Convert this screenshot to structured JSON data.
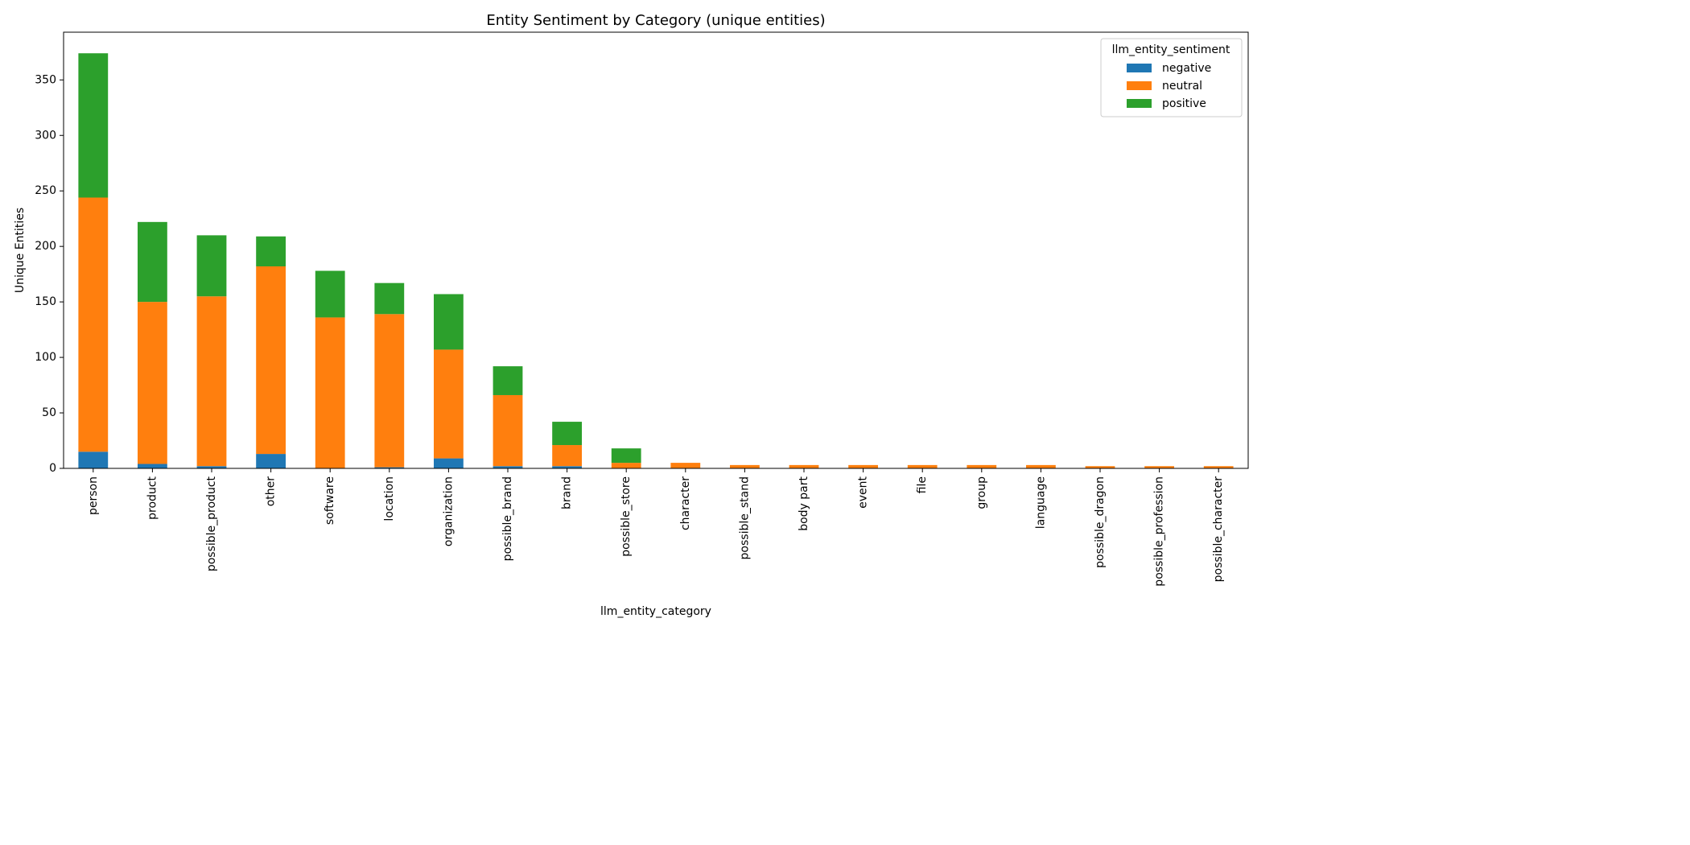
{
  "chart_data": {
    "type": "bar",
    "stacked": true,
    "title": "Entity Sentiment by Category (unique entities)",
    "xlabel": "llm_entity_category",
    "ylabel": "Unique Entities",
    "ylim": [
      0,
      393
    ],
    "yticks": [
      0,
      50,
      100,
      150,
      200,
      250,
      300,
      350
    ],
    "grid": false,
    "legend": {
      "title": "llm_entity_sentiment",
      "placement": "top-right"
    },
    "categories": [
      "person",
      "product",
      "possible_product",
      "other",
      "software",
      "location",
      "organization",
      "possible_brand",
      "brand",
      "possible_store",
      "character",
      "possible_stand",
      "body part",
      "event",
      "file",
      "group",
      "language",
      "possible_dragon",
      "possible_profession",
      "possible_character"
    ],
    "series": [
      {
        "name": "negative",
        "color": "#1f77b4",
        "values": [
          15,
          4,
          2,
          13,
          0,
          1,
          9,
          2,
          2,
          0,
          0,
          0,
          0,
          0,
          0,
          0,
          0,
          0,
          0,
          0
        ]
      },
      {
        "name": "neutral",
        "color": "#ff7f0e",
        "values": [
          229,
          146,
          153,
          169,
          136,
          138,
          98,
          64,
          19,
          5,
          5,
          3,
          3,
          3,
          3,
          3,
          3,
          2,
          2,
          2
        ]
      },
      {
        "name": "positive",
        "color": "#2ca02c",
        "values": [
          130,
          72,
          55,
          27,
          42,
          28,
          50,
          26,
          21,
          13,
          0,
          0,
          0,
          0,
          0,
          0,
          0,
          0,
          0,
          0
        ]
      }
    ]
  }
}
